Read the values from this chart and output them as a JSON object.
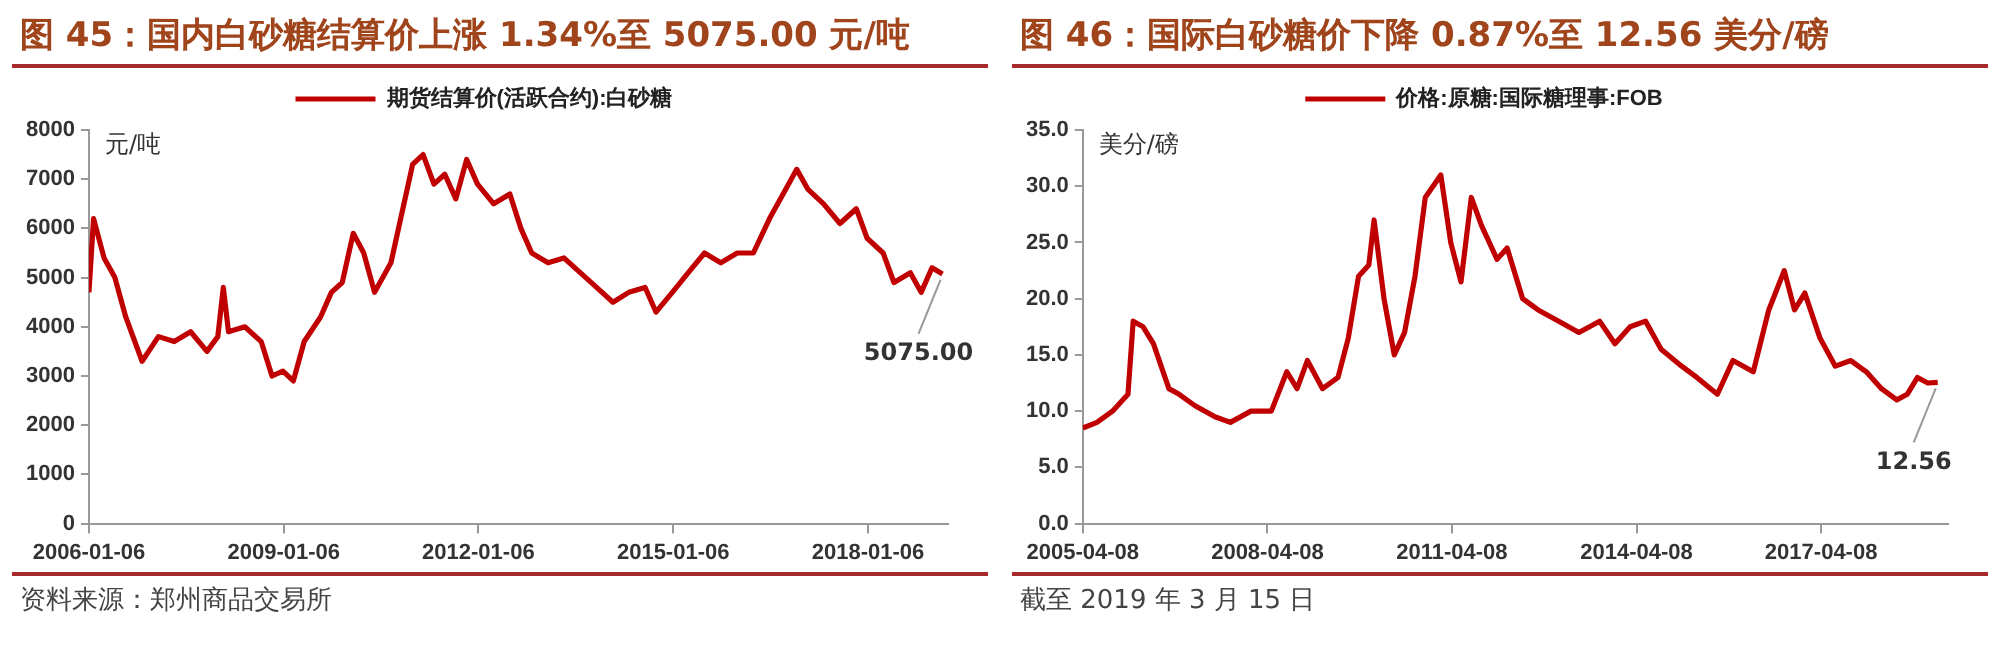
{
  "chart_data": [
    {
      "type": "line",
      "title": "图 45：国内白砂糖结算价上涨 1.34%至 5075.00 元/吨",
      "ylabel": "元/吨",
      "legend": "top",
      "grid": false,
      "marker": "none",
      "line_style": "solid",
      "x": [
        "2006-01-06",
        "2006-02",
        "2006-04",
        "2006-06",
        "2006-08",
        "2006-11",
        "2007-02",
        "2007-05",
        "2007-08",
        "2007-11",
        "2008-01",
        "2008-02",
        "2008-03",
        "2008-06",
        "2008-09",
        "2008-11",
        "2009-01",
        "2009-03",
        "2009-05",
        "2009-08",
        "2009-10",
        "2009-12",
        "2010-02",
        "2010-04",
        "2010-06",
        "2010-09",
        "2010-11",
        "2011-01",
        "2011-03",
        "2011-05",
        "2011-07",
        "2011-09",
        "2011-11",
        "2012-01",
        "2012-04",
        "2012-07",
        "2012-09",
        "2012-11",
        "2013-02",
        "2013-05",
        "2013-08",
        "2013-11",
        "2014-02",
        "2014-05",
        "2014-08",
        "2014-10",
        "2015-01",
        "2015-04",
        "2015-07",
        "2015-10",
        "2016-01",
        "2016-04",
        "2016-07",
        "2016-10",
        "2016-12",
        "2017-02",
        "2017-05",
        "2017-08",
        "2017-11",
        "2018-01",
        "2018-04",
        "2018-06",
        "2018-09",
        "2018-11",
        "2019-01",
        "2019-03"
      ],
      "series": [
        {
          "name": "期货结算价(活跃合约):白砂糖",
          "color": "#c00000",
          "values": [
            4700,
            6200,
            5400,
            5000,
            4200,
            3300,
            3800,
            3700,
            3900,
            3500,
            3800,
            4800,
            3900,
            4000,
            3700,
            3000,
            3100,
            2900,
            3700,
            4200,
            4700,
            4900,
            5900,
            5500,
            4700,
            5300,
            6300,
            7300,
            7500,
            6900,
            7100,
            6600,
            7400,
            6900,
            6500,
            6700,
            6000,
            5500,
            5300,
            5400,
            5100,
            4800,
            4500,
            4700,
            4800,
            4300,
            4700,
            5100,
            5500,
            5300,
            5500,
            5500,
            6200,
            6800,
            7200,
            6800,
            6500,
            6100,
            6400,
            5800,
            5500,
            4900,
            5100,
            4700,
            5200,
            5075
          ]
        }
      ],
      "xlim": [
        "2006-01-06",
        "2019-04-01"
      ],
      "xticks": [
        "2006-01-06",
        "2009-01-06",
        "2012-01-06",
        "2015-01-06",
        "2018-01-06"
      ],
      "ylim": [
        0,
        8000
      ],
      "yticks": [
        0,
        1000,
        2000,
        3000,
        4000,
        5000,
        6000,
        7000,
        8000
      ],
      "annotations": [
        {
          "text": "5075.00",
          "x": "2019-03",
          "y": 5075
        },
        "资料来源：郑州商品交易所"
      ]
    },
    {
      "type": "line",
      "title": "图 46：国际白砂糖价下降 0.87%至 12.56 美分/磅",
      "ylabel": "美分/磅",
      "legend": "top",
      "grid": false,
      "marker": "none",
      "line_style": "solid",
      "x": [
        "2005-04-08",
        "2005-07",
        "2005-10",
        "2006-01",
        "2006-02",
        "2006-04",
        "2006-06",
        "2006-09",
        "2006-11",
        "2007-02",
        "2007-06",
        "2007-09",
        "2008-01",
        "2008-05",
        "2008-08",
        "2008-10",
        "2008-12",
        "2009-03",
        "2009-06",
        "2009-08",
        "2009-10",
        "2009-12",
        "2010-01",
        "2010-03",
        "2010-05",
        "2010-07",
        "2010-09",
        "2010-11",
        "2011-02",
        "2011-04",
        "2011-06",
        "2011-08",
        "2011-10",
        "2012-01",
        "2012-03",
        "2012-06",
        "2012-09",
        "2013-01",
        "2013-05",
        "2013-09",
        "2013-12",
        "2014-03",
        "2014-06",
        "2014-09",
        "2015-01",
        "2015-04",
        "2015-08",
        "2015-11",
        "2016-03",
        "2016-06",
        "2016-09",
        "2016-11",
        "2017-01",
        "2017-04",
        "2017-07",
        "2017-10",
        "2018-01",
        "2018-04",
        "2018-07",
        "2018-09",
        "2018-11",
        "2019-01",
        "2019-03"
      ],
      "series": [
        {
          "name": "价格:原糖:国际糖理事:FOB",
          "color": "#c00000",
          "values": [
            8.5,
            9.0,
            10.0,
            11.5,
            18.0,
            17.5,
            16.0,
            12.0,
            11.5,
            10.5,
            9.5,
            9.0,
            10.0,
            10.0,
            13.5,
            12.0,
            14.5,
            12.0,
            13.0,
            16.5,
            22.0,
            23.0,
            27.0,
            20.0,
            15.0,
            17.0,
            22.0,
            29.0,
            31.0,
            25.0,
            21.5,
            29.0,
            26.5,
            23.5,
            24.5,
            20.0,
            19.0,
            18.0,
            17.0,
            18.0,
            16.0,
            17.5,
            18.0,
            15.5,
            14.0,
            13.0,
            11.5,
            14.5,
            13.5,
            19.0,
            22.5,
            19.0,
            20.5,
            16.5,
            14.0,
            14.5,
            13.5,
            12.0,
            11.0,
            11.5,
            13.0,
            12.5,
            12.56
          ]
        }
      ],
      "xlim": [
        "2005-04-08",
        "2019-05-01"
      ],
      "xticks": [
        "2005-04-08",
        "2008-04-08",
        "2011-04-08",
        "2014-04-08",
        "2017-04-08"
      ],
      "ylim": [
        0,
        35
      ],
      "yticks": [
        {
          "value": 0,
          "label": "0.0"
        },
        {
          "value": 5,
          "label": "5.0"
        },
        {
          "value": 10,
          "label": "10.0"
        },
        {
          "value": 15,
          "label": "15.0"
        },
        {
          "value": 20,
          "label": "20.0"
        },
        {
          "value": 25,
          "label": "25.0"
        },
        {
          "value": 30,
          "label": "30.0"
        },
        {
          "value": 35,
          "label": "35.0"
        }
      ],
      "annotations": [
        {
          "text": "12.56",
          "x": "2019-03",
          "y": 12.56
        },
        "截至 2019 年 3 月 15 日"
      ]
    }
  ]
}
